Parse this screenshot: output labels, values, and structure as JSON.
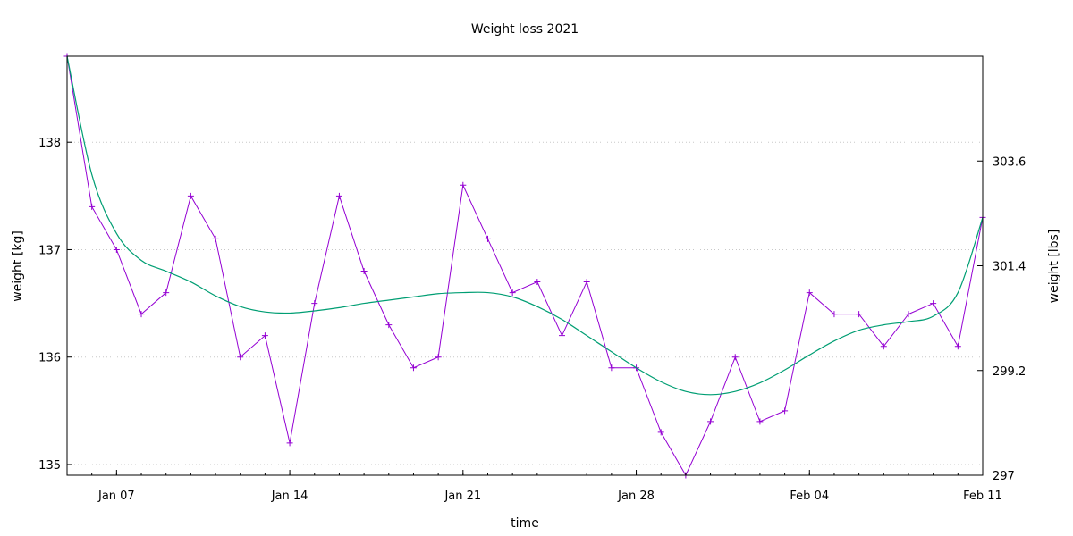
{
  "chart_data": {
    "type": "line",
    "title": "Weight loss 2021",
    "xlabel": "time",
    "ylabel": "weight [kg]",
    "y2label": "weight [lbs]",
    "x_start": "2021-01-05",
    "x_end": "2021-02-11",
    "xlim": [
      "2021-01-05",
      "2021-02-11"
    ],
    "ylim": [
      134.9,
      138.8
    ],
    "y2lim": [
      297.0,
      305.8
    ],
    "grid": "horizontal dotted",
    "x_ticks": [
      {
        "date": "2021-01-07",
        "label": "Jan 07"
      },
      {
        "date": "2021-01-14",
        "label": "Jan 14"
      },
      {
        "date": "2021-01-21",
        "label": "Jan 21"
      },
      {
        "date": "2021-01-28",
        "label": "Jan 28"
      },
      {
        "date": "2021-02-04",
        "label": "Feb 04"
      },
      {
        "date": "2021-02-11",
        "label": "Feb 11"
      }
    ],
    "y_ticks": [
      {
        "value": 135,
        "label": "135"
      },
      {
        "value": 136,
        "label": "136"
      },
      {
        "value": 137,
        "label": "137"
      },
      {
        "value": 138,
        "label": "138"
      }
    ],
    "y2_ticks": [
      {
        "value": 297.0,
        "label": "297"
      },
      {
        "value": 299.2,
        "label": "299.2"
      },
      {
        "value": 301.4,
        "label": "301.4"
      },
      {
        "value": 303.6,
        "label": "303.6"
      }
    ],
    "series": [
      {
        "style": "linespoints",
        "color": "#9400d3",
        "x": [
          "2021-01-05",
          "2021-01-06",
          "2021-01-07",
          "2021-01-08",
          "2021-01-09",
          "2021-01-10",
          "2021-01-11",
          "2021-01-12",
          "2021-01-13",
          "2021-01-14",
          "2021-01-15",
          "2021-01-16",
          "2021-01-17",
          "2021-01-18",
          "2021-01-19",
          "2021-01-20",
          "2021-01-21",
          "2021-01-22",
          "2021-01-23",
          "2021-01-24",
          "2021-01-25",
          "2021-01-26",
          "2021-01-27",
          "2021-01-28",
          "2021-01-29",
          "2021-01-30",
          "2021-01-31",
          "2021-02-01",
          "2021-02-02",
          "2021-02-03",
          "2021-02-04",
          "2021-02-05",
          "2021-02-06",
          "2021-02-07",
          "2021-02-08",
          "2021-02-09",
          "2021-02-10",
          "2021-02-11"
        ],
        "values": [
          138.8,
          137.4,
          137.0,
          136.4,
          136.6,
          137.5,
          137.1,
          136.0,
          136.2,
          135.2,
          136.5,
          137.5,
          136.8,
          136.3,
          135.9,
          136.0,
          137.6,
          137.1,
          136.6,
          136.7,
          136.2,
          136.7,
          135.9,
          135.9,
          135.3,
          134.9,
          135.4,
          136.0,
          135.4,
          135.5,
          136.6,
          136.4,
          136.4,
          136.1,
          136.4,
          136.5,
          136.1,
          137.3
        ]
      },
      {
        "style": "smooth",
        "color": "#009e73",
        "x": [
          "2021-01-05",
          "2021-01-06",
          "2021-01-07",
          "2021-01-08",
          "2021-01-09",
          "2021-01-10",
          "2021-01-11",
          "2021-01-12",
          "2021-01-13",
          "2021-01-14",
          "2021-01-15",
          "2021-01-16",
          "2021-01-17",
          "2021-01-18",
          "2021-01-19",
          "2021-01-20",
          "2021-01-21",
          "2021-01-22",
          "2021-01-23",
          "2021-01-24",
          "2021-01-25",
          "2021-01-26",
          "2021-01-27",
          "2021-01-28",
          "2021-01-29",
          "2021-01-30",
          "2021-01-31",
          "2021-02-01",
          "2021-02-02",
          "2021-02-03",
          "2021-02-04",
          "2021-02-05",
          "2021-02-06",
          "2021-02-07",
          "2021-02-08",
          "2021-02-09",
          "2021-02-10",
          "2021-02-11"
        ],
        "values": [
          138.8,
          137.7,
          137.15,
          136.9,
          136.8,
          136.7,
          136.57,
          136.47,
          136.42,
          136.41,
          136.43,
          136.46,
          136.5,
          136.53,
          136.56,
          136.59,
          136.6,
          136.6,
          136.56,
          136.47,
          136.35,
          136.2,
          136.05,
          135.9,
          135.77,
          135.68,
          135.65,
          135.68,
          135.76,
          135.88,
          136.02,
          136.15,
          136.25,
          136.3,
          136.33,
          136.38,
          136.6,
          137.3
        ]
      }
    ]
  }
}
